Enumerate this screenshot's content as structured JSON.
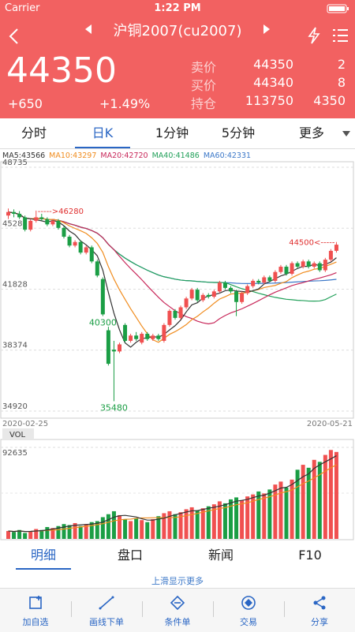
{
  "status": {
    "carrier": "Carrier",
    "time": "1:22 PM"
  },
  "header": {
    "title": "沪铜2007(cu2007)"
  },
  "quote": {
    "price": "44350",
    "change": "+650",
    "percent": "+1.49%",
    "rows": [
      [
        "卖价",
        "44350",
        "2"
      ],
      [
        "买价",
        "44340",
        "8"
      ],
      [
        "持仓",
        "113750",
        "4350"
      ]
    ]
  },
  "tabs": [
    "分时",
    "日K",
    "1分钟",
    "5分钟",
    "更多"
  ],
  "ma_legend": [
    {
      "text": "MA5:43566",
      "color": "#333333"
    },
    {
      "text": "MA10:43297",
      "color": "#f08c1e"
    },
    {
      "text": "MA20:42720",
      "color": "#c8285a"
    },
    {
      "text": "MA40:41486",
      "color": "#22a05a"
    },
    {
      "text": "MA60:42331",
      "color": "#3c78c8"
    }
  ],
  "chart_data": {
    "type": "candlestick",
    "ylim": [
      34920,
      48735
    ],
    "yticks": [
      34920,
      38374,
      41828,
      45281,
      48735
    ],
    "x_start": "2020-02-25",
    "x_end": "2020-05-21",
    "candles": [
      [
        46000,
        46400,
        45800,
        46200
      ],
      [
        46200,
        46350,
        45900,
        46100
      ],
      [
        46100,
        46250,
        45800,
        45900
      ],
      [
        45900,
        46000,
        45100,
        45200
      ],
      [
        45200,
        45800,
        45100,
        45700
      ],
      [
        45700,
        46280,
        45600,
        45900
      ],
      [
        45900,
        46100,
        45700,
        45800
      ],
      [
        45800,
        45900,
        45400,
        45500
      ],
      [
        45500,
        45800,
        45400,
        45700
      ],
      [
        45700,
        45800,
        45200,
        45300
      ],
      [
        45300,
        45400,
        44700,
        44800
      ],
      [
        44800,
        44900,
        44200,
        44300
      ],
      [
        44300,
        44600,
        44200,
        44500
      ],
      [
        44500,
        44600,
        43800,
        43900
      ],
      [
        43900,
        44300,
        43800,
        44200
      ],
      [
        44200,
        44300,
        43300,
        43400
      ],
      [
        43400,
        43500,
        42500,
        42600
      ],
      [
        42400,
        42500,
        40300,
        40400
      ],
      [
        39500,
        39700,
        37500,
        37600
      ],
      [
        38400,
        38900,
        35480,
        38300
      ],
      [
        38300,
        38800,
        38200,
        38700
      ],
      [
        39800,
        39900,
        38800,
        38900
      ],
      [
        38900,
        39300,
        38800,
        39200
      ],
      [
        39200,
        39400,
        38900,
        39000
      ],
      [
        38800,
        39400,
        38700,
        39300
      ],
      [
        39300,
        39400,
        38900,
        39000
      ],
      [
        39000,
        39300,
        38900,
        39200
      ],
      [
        39200,
        39300,
        38900,
        39000
      ],
      [
        38900,
        39900,
        38800,
        39800
      ],
      [
        39800,
        40700,
        39700,
        40600
      ],
      [
        40600,
        40700,
        40100,
        40200
      ],
      [
        40200,
        40900,
        40100,
        40800
      ],
      [
        40800,
        41400,
        40700,
        41300
      ],
      [
        41300,
        41900,
        41200,
        41800
      ],
      [
        41800,
        41900,
        41100,
        41200
      ],
      [
        41200,
        41600,
        41100,
        41500
      ],
      [
        41500,
        41600,
        41300,
        41400
      ],
      [
        41400,
        41800,
        41300,
        41700
      ],
      [
        41700,
        42300,
        41600,
        42200
      ],
      [
        42200,
        42300,
        41800,
        41900
      ],
      [
        41900,
        42000,
        41600,
        41700
      ],
      [
        41700,
        41800,
        40300,
        41100
      ],
      [
        41100,
        41700,
        41000,
        41600
      ],
      [
        41600,
        42100,
        41500,
        42000
      ],
      [
        42000,
        42400,
        41900,
        42300
      ],
      [
        42300,
        42400,
        42100,
        42200
      ],
      [
        42200,
        42600,
        42100,
        42500
      ],
      [
        42500,
        42600,
        42200,
        42300
      ],
      [
        42300,
        42900,
        42200,
        42800
      ],
      [
        42800,
        43200,
        42700,
        43100
      ],
      [
        43100,
        43200,
        42600,
        42700
      ],
      [
        42700,
        43400,
        42600,
        43300
      ],
      [
        43300,
        43400,
        43000,
        43100
      ],
      [
        43100,
        43500,
        43000,
        43400
      ],
      [
        43400,
        43500,
        43000,
        43100
      ],
      [
        43100,
        43400,
        43000,
        43300
      ],
      [
        43300,
        43400,
        42800,
        42900
      ],
      [
        42900,
        43600,
        42800,
        43500
      ],
      [
        43500,
        44100,
        43400,
        44000
      ],
      [
        44000,
        44500,
        43900,
        44350
      ]
    ],
    "annotations": [
      {
        "value": 46280,
        "label": "----->46280"
      },
      {
        "value": 35480
      },
      {
        "value": 40300
      },
      {
        "value": 44500,
        "label": "44500<-----"
      }
    ],
    "volume": {
      "label": "VOL",
      "ylim": [
        0,
        92635
      ],
      "yticks": [
        92635
      ],
      "values": [
        8000,
        7000,
        9000,
        6000,
        8000,
        10000,
        9000,
        12000,
        11000,
        13000,
        15000,
        14000,
        16000,
        13000,
        15000,
        17000,
        18000,
        22000,
        25000,
        28000,
        24000,
        20000,
        18000,
        21000,
        19000,
        17000,
        20000,
        23000,
        26000,
        28000,
        25000,
        27000,
        30000,
        32000,
        29000,
        31000,
        33000,
        35000,
        38000,
        36000,
        40000,
        42000,
        39000,
        43000,
        45000,
        48000,
        46000,
        50000,
        55000,
        58000,
        52000,
        60000,
        70000,
        75000,
        72000,
        80000,
        78000,
        85000,
        90000,
        88000
      ]
    }
  },
  "bottom_tabs": [
    "明细",
    "盘口",
    "新闻",
    "F10"
  ],
  "hint": "上滑显示更多",
  "toolbar": [
    "加自选",
    "画线下单",
    "条件单",
    "交易",
    "分享"
  ]
}
